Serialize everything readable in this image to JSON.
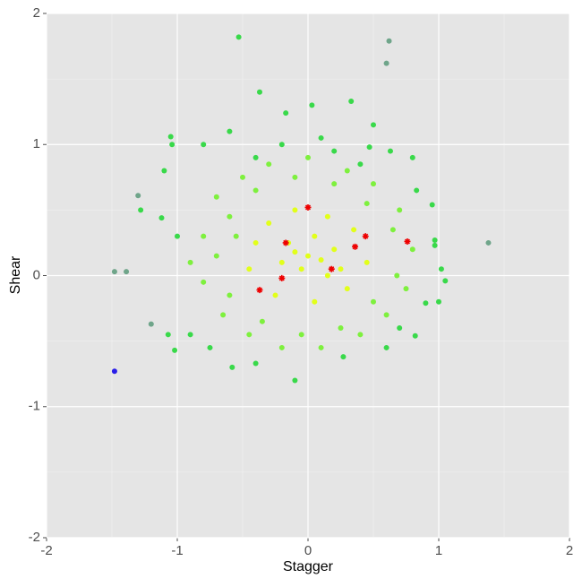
{
  "chart_data": {
    "type": "scatter",
    "x_label": "Stagger",
    "y_label": "Shear",
    "xlim": [
      -2,
      2
    ],
    "ylim": [
      -2,
      2
    ],
    "xticks": [
      -2,
      -1,
      0,
      1,
      2
    ],
    "yticks": [
      -2,
      -1,
      0,
      1,
      2
    ],
    "grid": true,
    "series": [
      {
        "color": "#39d94a",
        "marker": "circle",
        "x": [
          -0.53,
          -0.37,
          0.33,
          0.03,
          -0.17,
          0.5,
          -1.05,
          -1.04,
          -0.8,
          0.47,
          0.63,
          -1.1,
          0.8,
          -1.28,
          0.95,
          0.83,
          -1.12,
          0.97,
          0.97,
          -1.07,
          -1.02,
          1.02,
          1.05,
          0.9,
          0.82,
          -0.1,
          0.27,
          -0.58,
          -0.4,
          0.6,
          -0.9,
          -0.75,
          0.7,
          -1.0,
          1.0,
          -0.2,
          0.2,
          -0.6,
          0.1,
          0.4,
          -0.4
        ],
        "values": [
          1.82,
          1.4,
          1.33,
          1.3,
          1.24,
          1.15,
          1.06,
          1.0,
          1.0,
          0.98,
          0.95,
          0.8,
          0.9,
          0.5,
          0.54,
          0.65,
          0.44,
          0.27,
          0.23,
          -0.45,
          -0.57,
          0.05,
          -0.04,
          -0.21,
          -0.46,
          -0.8,
          -0.62,
          -0.7,
          -0.67,
          -0.55,
          -0.45,
          -0.55,
          -0.4,
          0.3,
          -0.2,
          1.0,
          0.95,
          1.1,
          1.05,
          0.85,
          0.9
        ]
      },
      {
        "color": "#6fa58a",
        "marker": "circle",
        "x": [
          -1.48,
          -1.39,
          1.38,
          0.62,
          0.6,
          -1.2,
          -1.3
        ],
        "values": [
          0.03,
          0.03,
          0.25,
          1.79,
          1.62,
          -0.37,
          0.61
        ]
      },
      {
        "color": "#2a1ee8",
        "marker": "circle",
        "x": [
          -1.48
        ],
        "values": [
          -0.73
        ]
      },
      {
        "color": "#7ef03e",
        "marker": "circle",
        "x": [
          -0.8,
          -0.7,
          -0.5,
          -0.3,
          0,
          0.3,
          0.5,
          0.7,
          0.8,
          0.75,
          0.6,
          0.4,
          0.1,
          -0.2,
          -0.45,
          -0.65,
          -0.8,
          -0.9,
          -0.6,
          -0.4,
          -0.1,
          0.2,
          0.45,
          0.65,
          0.68,
          0.5,
          0.25,
          -0.05,
          -0.35,
          -0.6,
          -0.7,
          -0.55
        ],
        "values": [
          0.3,
          0.6,
          0.75,
          0.85,
          0.9,
          0.8,
          0.7,
          0.5,
          0.2,
          -0.1,
          -0.3,
          -0.45,
          -0.55,
          -0.55,
          -0.45,
          -0.3,
          -0.05,
          0.1,
          0.45,
          0.65,
          0.75,
          0.7,
          0.55,
          0.35,
          0.0,
          -0.2,
          -0.4,
          -0.45,
          -0.35,
          -0.15,
          0.15,
          0.3
        ]
      },
      {
        "color": "#e2ff1a",
        "marker": "circle",
        "x": [
          -0.3,
          -0.1,
          0.15,
          0.35,
          0.45,
          0.3,
          0.05,
          -0.25,
          -0.45,
          -0.4,
          -0.15,
          0.05,
          0.2,
          0.15,
          -0.05,
          -0.2,
          0,
          0.1,
          -0.1,
          0.25
        ],
        "values": [
          0.4,
          0.5,
          0.45,
          0.35,
          0.1,
          -0.1,
          -0.2,
          -0.15,
          0.05,
          0.25,
          0.25,
          0.3,
          0.2,
          0.0,
          0.05,
          0.1,
          0.15,
          0.12,
          0.18,
          0.05
        ]
      },
      {
        "color": "#ee0000",
        "marker": "star",
        "x": [
          0,
          -0.17,
          0.44,
          0.76,
          0.36,
          0.18,
          -0.2,
          -0.37
        ],
        "values": [
          0.52,
          0.25,
          0.3,
          0.26,
          0.22,
          0.05,
          -0.02,
          -0.11
        ]
      }
    ]
  }
}
